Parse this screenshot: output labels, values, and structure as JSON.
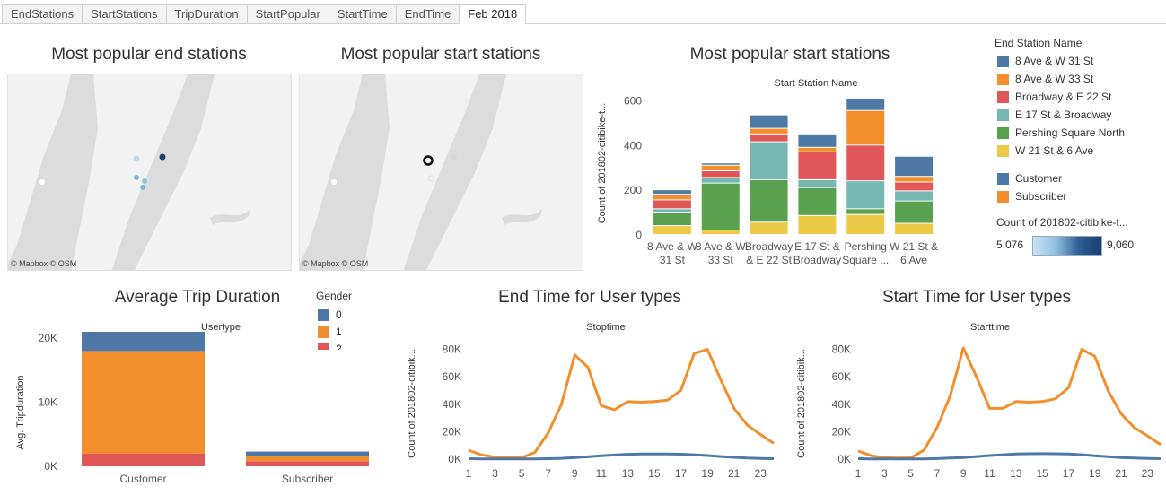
{
  "tabs": [
    "EndStations",
    "StartStations",
    "TripDuration",
    "StartPopular",
    "StartTime",
    "EndTime",
    "Feb 2018"
  ],
  "active_tab": 6,
  "titles": {
    "end_map": "Most popular end stations",
    "start_map": "Most popular start stations",
    "start_bar": "Most popular start stations",
    "avg_trip": "Average Trip Duration",
    "end_time": "End Time for User types",
    "start_time": "Start Time for User types"
  },
  "map_attribution": "© Mapbox  © OSM",
  "colors": {
    "station": [
      "#4e79a7",
      "#f28e2b",
      "#e15759",
      "#76b7b2",
      "#59a14f",
      "#edc948"
    ],
    "customer": "#4e79a7",
    "subscriber": "#f28e2b",
    "gender": [
      "#4e79a7",
      "#f28e2b",
      "#e15759"
    ],
    "map_water": "#dcdcdc",
    "map_land": "#f2f2f2"
  },
  "legends": {
    "end_station_title": "End Station Name",
    "end_stations": [
      "8 Ave & W 31 St",
      "8 Ave & W 33 St",
      "Broadway & E 22 St",
      "E 17 St & Broadway",
      "Pershing Square North",
      "W 21 St & 6 Ave"
    ],
    "usertypes": [
      "Customer",
      "Subscriber"
    ],
    "count_title": "Count of 201802-citibike-t...",
    "count_min": "5,076",
    "count_max": "9,060",
    "gender_title": "Gender",
    "gender": [
      "0",
      "1",
      "2"
    ]
  },
  "chart_data": [
    {
      "type": "bar",
      "stacked": true,
      "title": "Most popular start stations",
      "subtitle": "Start Station Name",
      "ylabel": "Count of 201802-citibike-t...",
      "ylim": [
        0,
        650
      ],
      "yticks": [
        0,
        200,
        400,
        600
      ],
      "categories": [
        [
          "8 Ave & W",
          "31 St"
        ],
        [
          "8 Ave & W",
          "33 St"
        ],
        [
          "Broadway",
          "& E 22 St"
        ],
        [
          "E 17 St &",
          "Broadway"
        ],
        [
          "Pershing",
          "Square ..."
        ],
        [
          "W 21 St &",
          "6 Ave"
        ]
      ],
      "series": [
        {
          "name": "W 21 St & 6 Ave",
          "values": [
            40,
            20,
            55,
            85,
            90,
            50
          ]
        },
        {
          "name": "Pershing Square North",
          "values": [
            60,
            210,
            190,
            125,
            25,
            100
          ]
        },
        {
          "name": "E 17 St & Broadway",
          "values": [
            15,
            25,
            170,
            35,
            125,
            45
          ]
        },
        {
          "name": "Broadway & E 22 St",
          "values": [
            40,
            30,
            35,
            125,
            160,
            40
          ]
        },
        {
          "name": "8 Ave & W 33 St",
          "values": [
            25,
            25,
            25,
            20,
            155,
            25
          ]
        },
        {
          "name": "8 Ave & W 31 St",
          "values": [
            20,
            10,
            60,
            60,
            55,
            90
          ]
        }
      ]
    },
    {
      "type": "bar",
      "stacked": true,
      "title": "Average Trip Duration",
      "subtitle": "Usertype",
      "ylabel": "Avg. Tripduration",
      "ylim": [
        0,
        21000
      ],
      "yticks": [
        0,
        10000,
        20000
      ],
      "ytick_labels": [
        "0K",
        "10K",
        "20K"
      ],
      "categories": [
        "Customer",
        "Subscriber"
      ],
      "series": [
        {
          "name": "2",
          "values": [
            2000,
            800
          ]
        },
        {
          "name": "1",
          "values": [
            16000,
            750
          ]
        },
        {
          "name": "0",
          "values": [
            3000,
            750
          ]
        }
      ]
    },
    {
      "type": "line",
      "title": "End Time for User types",
      "subtitle": "Stoptime",
      "ylabel": "Count of 201802-citibik...",
      "ylim": [
        0,
        85000
      ],
      "yticks": [
        0,
        20000,
        40000,
        60000,
        80000
      ],
      "ytick_labels": [
        "0K",
        "20K",
        "40K",
        "60K",
        "80K"
      ],
      "x": [
        0,
        1,
        2,
        3,
        4,
        5,
        6,
        7,
        8,
        9,
        10,
        11,
        12,
        13,
        14,
        15,
        16,
        17,
        18,
        19,
        20,
        21,
        22,
        23
      ],
      "xtick_labels": [
        "1",
        "3",
        "5",
        "7",
        "9",
        "11",
        "13",
        "15",
        "17",
        "19",
        "21",
        "23"
      ],
      "series": [
        {
          "name": "Subscriber",
          "values": [
            6500,
            3000,
            1500,
            1000,
            1000,
            5000,
            19000,
            40000,
            76000,
            67000,
            39000,
            36000,
            42000,
            41500,
            42000,
            43000,
            50000,
            77000,
            80000,
            58000,
            37000,
            25000,
            18000,
            11500
          ]
        },
        {
          "name": "Customer",
          "values": [
            300,
            200,
            100,
            100,
            100,
            150,
            300,
            600,
            1100,
            1700,
            2400,
            3000,
            3500,
            3700,
            3800,
            3700,
            3600,
            3200,
            2600,
            1900,
            1300,
            800,
            500,
            350
          ]
        }
      ]
    },
    {
      "type": "line",
      "title": "Start Time for User types",
      "subtitle": "Starttime",
      "ylabel": "Count of 201802-citibik...",
      "ylim": [
        0,
        85000
      ],
      "yticks": [
        0,
        20000,
        40000,
        60000,
        80000
      ],
      "ytick_labels": [
        "0K",
        "20K",
        "40K",
        "60K",
        "80K"
      ],
      "x": [
        0,
        1,
        2,
        3,
        4,
        5,
        6,
        7,
        8,
        9,
        10,
        11,
        12,
        13,
        14,
        15,
        16,
        17,
        18,
        19,
        20,
        21,
        22,
        23
      ],
      "xtick_labels": [
        "1",
        "3",
        "5",
        "7",
        "9",
        "11",
        "13",
        "15",
        "17",
        "19",
        "21",
        "23"
      ],
      "series": [
        {
          "name": "Subscriber",
          "values": [
            6000,
            2500,
            1200,
            800,
            1000,
            6500,
            23000,
            46000,
            81000,
            60000,
            37000,
            37000,
            42000,
            41500,
            42000,
            44000,
            52000,
            80000,
            75000,
            50000,
            33000,
            23000,
            17000,
            10500
          ]
        },
        {
          "name": "Customer",
          "values": [
            300,
            200,
            100,
            100,
            100,
            200,
            400,
            800,
            1200,
            1900,
            2600,
            3200,
            3700,
            3900,
            4000,
            3900,
            3700,
            3200,
            2500,
            1800,
            1200,
            800,
            500,
            300
          ]
        }
      ]
    }
  ]
}
